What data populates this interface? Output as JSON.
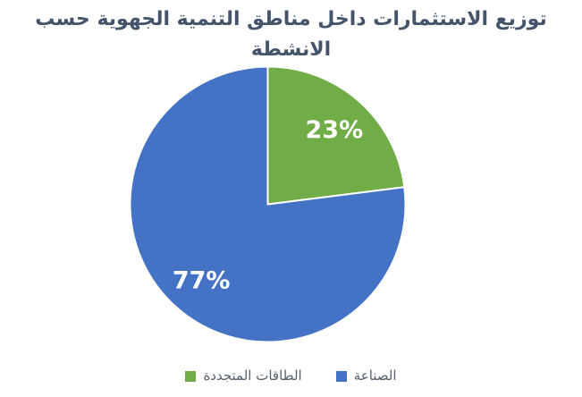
{
  "title": "توزيع الاستثمارات داخل مناطق التنمية الجهوية حسب الانشطة",
  "colors": {
    "background": "#ffffff",
    "title_text": "#44546A",
    "legend_text": "#546170",
    "data_label_text": "#ffffff",
    "slice_border": "#ffffff",
    "renewables_green": "#70AD47",
    "industry_blue": "#4472C4"
  },
  "chart_data": {
    "type": "pie",
    "title": "توزيع الاستثمارات داخل مناطق التنمية الجهوية حسب الانشطة",
    "start_angle_deg": 0,
    "direction": "clockwise",
    "legend_position": "bottom",
    "data_labels": "percent",
    "slices": [
      {
        "label": "الطاقات المتجددة",
        "value": 23,
        "display": "23%",
        "color": "#70AD47"
      },
      {
        "label": "الصناعة",
        "value": 77,
        "display": "77%",
        "color": "#4472C4"
      }
    ]
  },
  "legend": {
    "items": [
      {
        "label": "الطاقات المتجددة",
        "color": "#70AD47"
      },
      {
        "label": "الصناعة",
        "color": "#4472C4"
      }
    ]
  }
}
